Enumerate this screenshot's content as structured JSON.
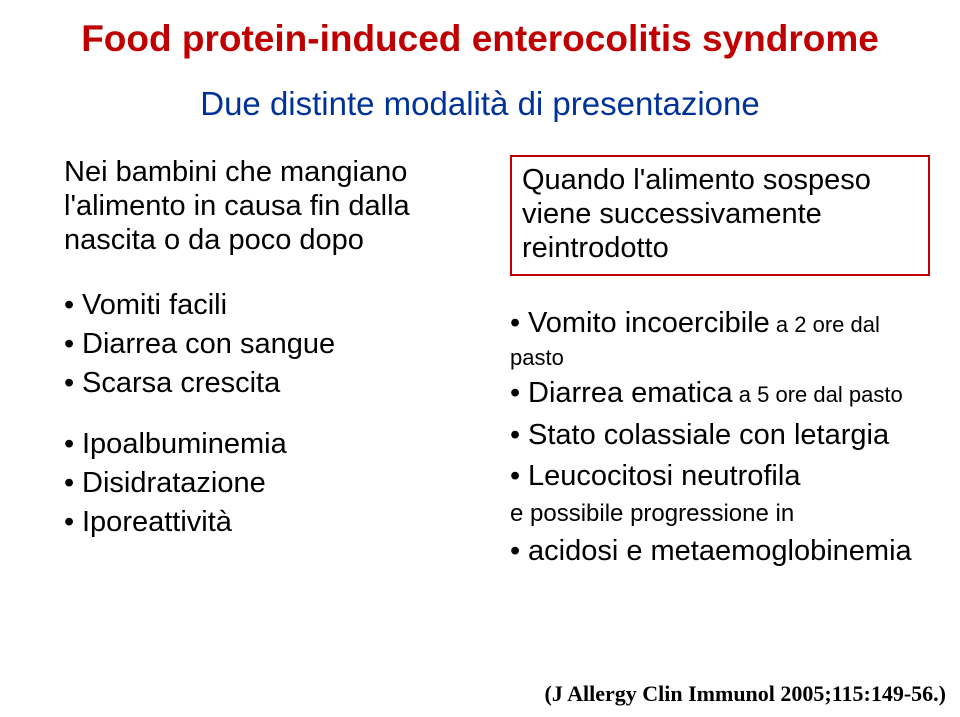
{
  "title": "Food protein-induced enterocolitis syndrome",
  "subtitle": "Due distinte modalità di presentazione",
  "left": {
    "intro": "Nei bambini che mangiano l'alimento in causa fin dalla nascita o da poco dopo",
    "group1": [
      "Vomiti facili",
      "Diarrea con sangue",
      "Scarsa crescita"
    ],
    "group2": [
      "Ipoalbuminemia",
      "Disidratazione",
      "Iporeattività"
    ]
  },
  "right": {
    "intro": "Quando l'alimento sospeso viene successivamente reintrodotto",
    "items": [
      {
        "main": "Vomito incoercibile",
        "sub": " a 2 ore dal pasto"
      },
      {
        "main": "Diarrea ematica",
        "sub": " a 5 ore dal pasto"
      },
      {
        "main": "Stato colassiale con letargia",
        "sub": ""
      },
      {
        "main": "Leucocitosi neutrofila",
        "sub": ""
      }
    ],
    "indent": "e possibile progressione in",
    "final": {
      "main": "acidosi e metaemoglobinemia",
      "sub": ""
    }
  },
  "citation": "(J Allergy Clin Immunol 2005;115:149-56.)",
  "colors": {
    "title": "#c00000",
    "subtitle": "#003399",
    "text": "#000000",
    "box_border": "#c00000",
    "background": "#ffffff"
  }
}
